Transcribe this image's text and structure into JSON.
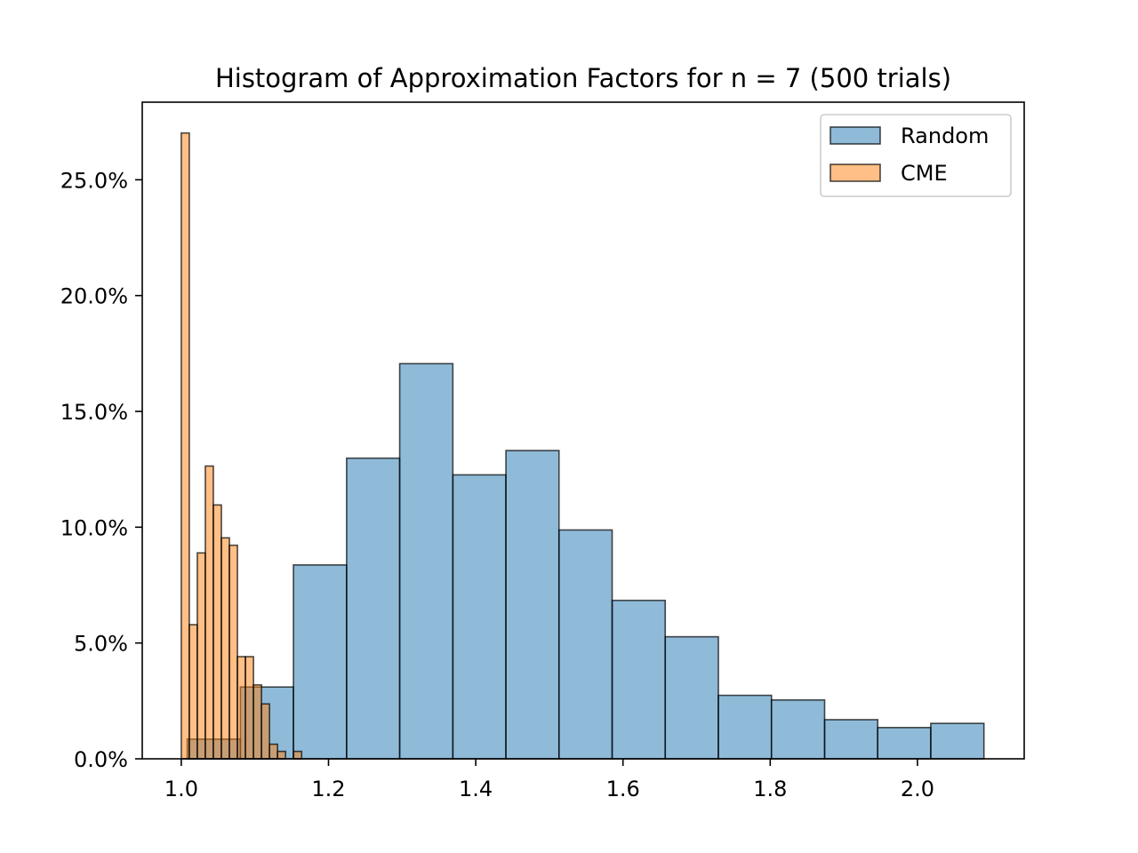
{
  "chart_data": {
    "type": "bar",
    "title": "Histogram of Approximation Factors for n = 7 (500 trials)",
    "xlabel": "",
    "ylabel": "",
    "xlim": [
      0.947,
      2.145
    ],
    "ylim": [
      0,
      0.2835
    ],
    "x_ticks": [
      1.0,
      1.2,
      1.4,
      1.6,
      1.8,
      2.0
    ],
    "x_tick_labels": [
      "1.0",
      "1.2",
      "1.4",
      "1.6",
      "1.8",
      "2.0"
    ],
    "y_ticks": [
      0,
      0.05,
      0.1,
      0.15,
      0.2,
      0.25
    ],
    "y_tick_labels": [
      "0.0%",
      "5.0%",
      "10.0%",
      "15.0%",
      "20.0%",
      "25.0%"
    ],
    "grid": false,
    "legend_position": "top-right",
    "series": [
      {
        "name": "Random",
        "color": "#1f77b4",
        "bins": [
          {
            "x0": 1.0081,
            "x1": 1.0803,
            "value": 0.0085
          },
          {
            "x0": 1.0803,
            "x1": 1.1524,
            "value": 0.031
          },
          {
            "x0": 1.1524,
            "x1": 1.2246,
            "value": 0.0837
          },
          {
            "x0": 1.2246,
            "x1": 1.2967,
            "value": 0.1298
          },
          {
            "x0": 1.2967,
            "x1": 1.3689,
            "value": 0.1706
          },
          {
            "x0": 1.3689,
            "x1": 1.441,
            "value": 0.1226
          },
          {
            "x0": 1.441,
            "x1": 1.5131,
            "value": 0.1331
          },
          {
            "x0": 1.5131,
            "x1": 1.5853,
            "value": 0.0988
          },
          {
            "x0": 1.5853,
            "x1": 1.6574,
            "value": 0.0684
          },
          {
            "x0": 1.6574,
            "x1": 1.7296,
            "value": 0.0527
          },
          {
            "x0": 1.7296,
            "x1": 1.8017,
            "value": 0.0274
          },
          {
            "x0": 1.8017,
            "x1": 1.8739,
            "value": 0.0254
          },
          {
            "x0": 1.8739,
            "x1": 1.946,
            "value": 0.0169
          },
          {
            "x0": 1.946,
            "x1": 2.0181,
            "value": 0.0135
          },
          {
            "x0": 2.0181,
            "x1": 2.0903,
            "value": 0.0153
          }
        ]
      },
      {
        "name": "CME",
        "color": "#ff7f0e",
        "bins": [
          {
            "x0": 1.0,
            "x1": 1.0109,
            "value": 0.2702
          },
          {
            "x0": 1.0109,
            "x1": 1.0218,
            "value": 0.0579
          },
          {
            "x0": 1.0218,
            "x1": 1.0327,
            "value": 0.0889
          },
          {
            "x0": 1.0327,
            "x1": 1.0436,
            "value": 0.1264
          },
          {
            "x0": 1.0436,
            "x1": 1.0545,
            "value": 0.1096
          },
          {
            "x0": 1.0545,
            "x1": 1.0654,
            "value": 0.0954
          },
          {
            "x0": 1.0654,
            "x1": 1.0763,
            "value": 0.0922
          },
          {
            "x0": 1.0763,
            "x1": 1.0872,
            "value": 0.0441
          },
          {
            "x0": 1.0872,
            "x1": 1.0981,
            "value": 0.0441
          },
          {
            "x0": 1.0981,
            "x1": 1.109,
            "value": 0.0319
          },
          {
            "x0": 1.109,
            "x1": 1.1199,
            "value": 0.0237
          },
          {
            "x0": 1.1199,
            "x1": 1.1308,
            "value": 0.0063
          },
          {
            "x0": 1.1308,
            "x1": 1.1417,
            "value": 0.0032
          },
          {
            "x0": 1.1417,
            "x1": 1.1526,
            "value": 0.0
          },
          {
            "x0": 1.1526,
            "x1": 1.1635,
            "value": 0.0032
          }
        ]
      }
    ]
  }
}
